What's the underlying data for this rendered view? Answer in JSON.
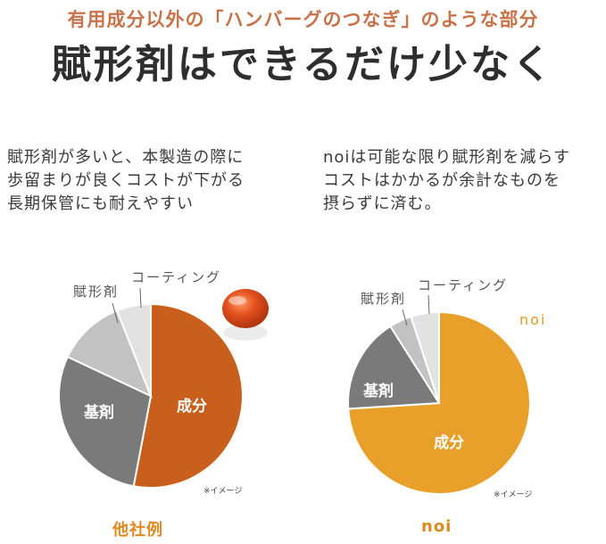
{
  "header": {
    "subtitle": "有用成分以外の「ハンバーグのつなぎ」のような部分",
    "headline": "賦形剤はできるだけ少なく"
  },
  "left_column": {
    "lines": [
      "賦形剤が多いと、本製造の際に",
      "歩留まりが良くコストが下がる",
      "長期保管にも耐えやすい"
    ],
    "chart_labels": {
      "seibun": "成分",
      "kizai": "基剤",
      "fukeizai": "賦形剤",
      "coating": "コーティング"
    },
    "note": "※イメージ",
    "caption": "他社例"
  },
  "right_column": {
    "lines": [
      "noiは可能な限り賦形剤を減らす",
      "コストはかかるが余計なものを",
      "摂らずに済む。"
    ],
    "chart_labels": {
      "seibun": "成分",
      "kizai": "基剤",
      "fukeizai": "賦形剤",
      "coating": "コーティング"
    },
    "brand": "noi",
    "note": "※イメージ",
    "caption": "noi"
  },
  "chart_data": [
    {
      "type": "pie",
      "categories": [
        "成分",
        "基剤",
        "賦形剤",
        "コーティング"
      ],
      "values": [
        53,
        29,
        12,
        6
      ],
      "colors": [
        "#c95f1c",
        "#7a7a7a",
        "#c2c2c2",
        "#e2e2e2"
      ]
    },
    {
      "type": "pie",
      "categories": [
        "成分",
        "基剤",
        "賦形剤",
        "コーティング"
      ],
      "values": [
        74,
        17,
        4,
        5
      ],
      "colors": [
        "#e9a02a",
        "#7a7a7a",
        "#c2c2c2",
        "#e2e2e2"
      ]
    }
  ],
  "colors": {
    "accent_orange": "#e0891e",
    "subtitle": "#c8724a",
    "capsule": "#d94a1c"
  }
}
